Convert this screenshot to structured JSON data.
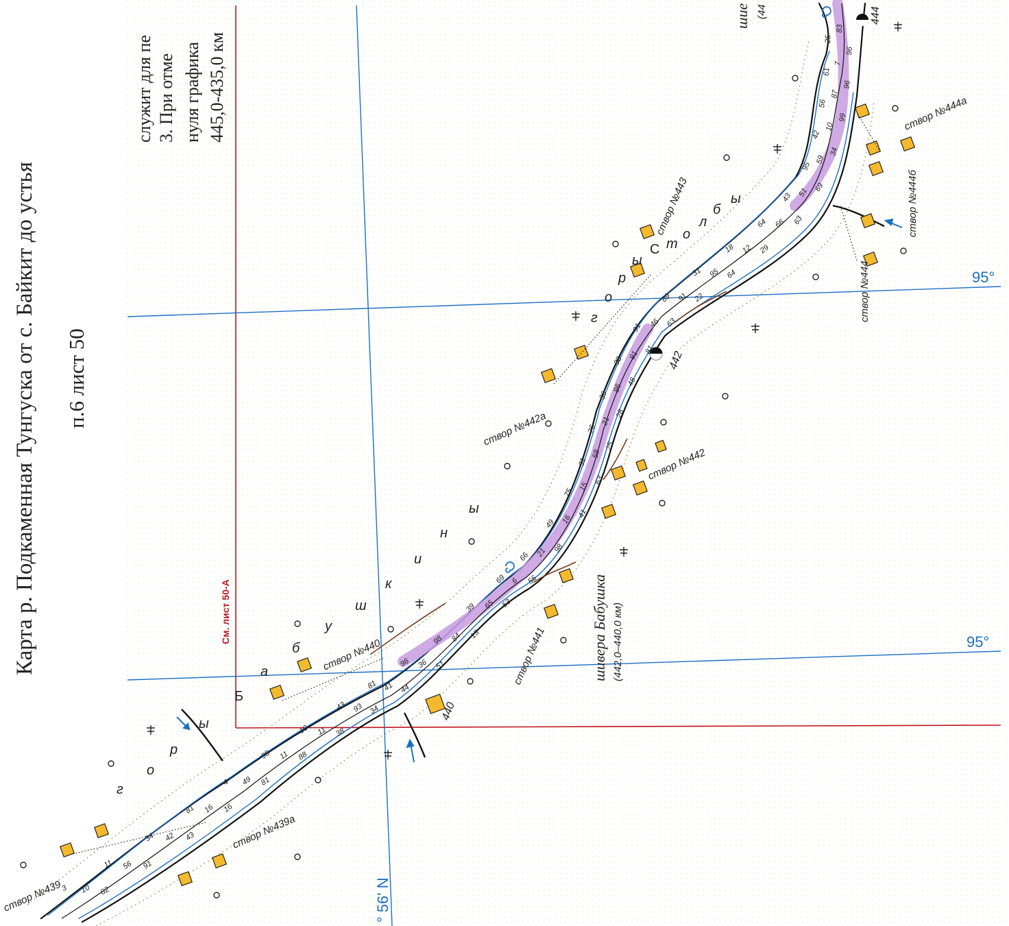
{
  "map_title": "Карта р. Подкаменная Тунгуска от с. Байкит до устья",
  "sheet": "п.6 лист 50",
  "notes": [
    "служит для пе",
    "3. При отме",
    "нуля графика",
    "445,0-435,0 км"
  ],
  "longitude_labels": [
    "95°",
    "95°"
  ],
  "latitude_label": "° 56' N",
  "see_sheet": "См. лист 50-А",
  "shiver_name": "шивера Бабушка",
  "shiver_range": "(442,0–440,0 км)",
  "shiver_top": "шие",
  "shiver_top_range": "(44",
  "stvor_labels": [
    "створ №439",
    "створ №439а",
    "створ №440",
    "створ №441",
    "створ №442",
    "створ №442а",
    "створ №443",
    "створ №444",
    "створ №444а",
    "створ №444б"
  ],
  "km_marks": [
    "440",
    "442",
    "444"
  ],
  "place_name_1": [
    "г",
    "о",
    "р",
    "ы",
    "Б",
    "а",
    "б",
    "у",
    "ш",
    "к",
    "и",
    "н",
    "ы"
  ],
  "place_name_2": [
    "г",
    "о",
    "р",
    "ы",
    "С",
    "т",
    "о",
    "л",
    "б",
    "ы"
  ],
  "depths": [
    "3",
    "10",
    "82",
    "11",
    "56",
    "91",
    "34",
    "42",
    "43",
    "81",
    "16",
    "16",
    "4",
    "49",
    "81",
    "98",
    "11",
    "88",
    "10",
    "11",
    "38",
    "43",
    "93",
    "34",
    "81",
    "41",
    "44",
    "96",
    "36",
    "51",
    "98",
    "84",
    "13",
    "39",
    "65",
    "53",
    "69",
    "6",
    "56",
    "66",
    "21",
    "98",
    "49",
    "16",
    "41",
    "75",
    "15",
    "63",
    "31",
    "58",
    "25",
    "76",
    "21",
    "28",
    "36",
    "86",
    "48",
    "38",
    "91",
    "81",
    "91",
    "46",
    "63",
    "89",
    "91",
    "22",
    "31",
    "95",
    "64",
    "18",
    "12",
    "29",
    "64",
    "66",
    "63",
    "43",
    "51",
    "69",
    "95",
    "59",
    "34",
    "42",
    "10",
    "99",
    "56",
    "87",
    "96",
    "61",
    "7",
    "96",
    "25",
    "83"
  ],
  "colors": {
    "river": "#1a6fc4",
    "fairway": "#c79be0",
    "frame": "#c0141b",
    "marker": "#f5b92e",
    "grid": "#1a6fc4"
  }
}
